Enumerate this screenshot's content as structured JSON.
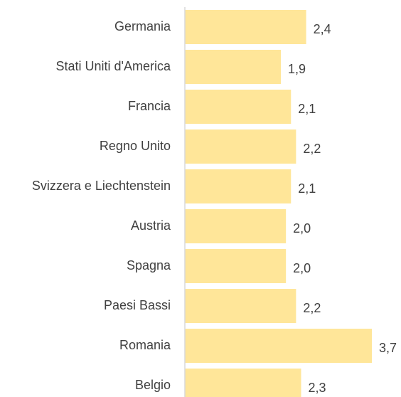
{
  "chart_data": {
    "type": "bar",
    "orientation": "horizontal",
    "categories": [
      "Germania",
      "Stati Uniti d'America",
      "Francia",
      "Regno Unito",
      "Svizzera e Liechtenstein",
      "Austria",
      "Spagna",
      "Paesi Bassi",
      "Romania",
      "Belgio"
    ],
    "values": [
      2.4,
      1.9,
      2.1,
      2.2,
      2.1,
      2.0,
      2.0,
      2.2,
      3.7,
      2.3
    ],
    "value_labels": [
      "2,4",
      "1,9",
      "2,1",
      "2,2",
      "2,1",
      "2,0",
      "2,0",
      "2,2",
      "3,7",
      "2,3"
    ],
    "color": "#ffe699"
  }
}
